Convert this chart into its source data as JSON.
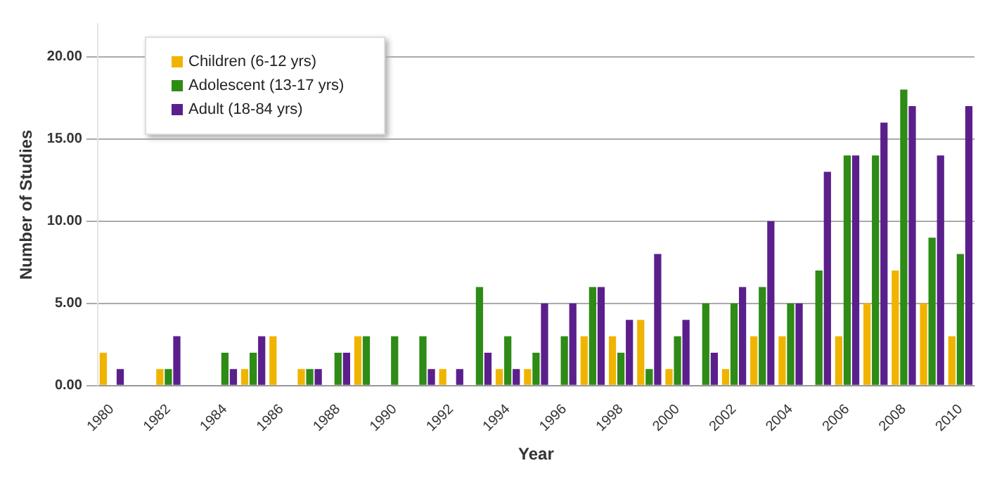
{
  "chart_data": {
    "type": "bar",
    "xlabel": "Year",
    "ylabel": "Number of Studies",
    "categories": [
      "1980",
      null,
      "1982",
      null,
      "1984",
      null,
      "1986",
      null,
      "1988",
      null,
      "1990",
      null,
      "1992",
      null,
      "1994",
      null,
      "1996",
      null,
      "1998",
      null,
      "2000",
      null,
      "2002",
      null,
      "2004",
      null,
      "2006",
      null,
      "2008",
      null,
      "2010"
    ],
    "series": [
      {
        "name": "Children (6-12 yrs)",
        "color": "#f0b400",
        "values": [
          2,
          null,
          1,
          null,
          null,
          1,
          3,
          1,
          null,
          3,
          null,
          null,
          1,
          null,
          1,
          1,
          null,
          3,
          3,
          4,
          1,
          null,
          1,
          3,
          3,
          null,
          3,
          5,
          7,
          5,
          3
        ]
      },
      {
        "name": "Adolescent (13-17 yrs)",
        "color": "#2e8b16",
        "values": [
          null,
          null,
          1,
          null,
          2,
          2,
          null,
          1,
          2,
          3,
          3,
          3,
          null,
          6,
          3,
          2,
          3,
          6,
          2,
          1,
          3,
          5,
          5,
          6,
          5,
          7,
          14,
          14,
          18,
          9,
          8
        ]
      },
      {
        "name": "Adult (18-84 yrs)",
        "color": "#5b1f8c",
        "values": [
          1,
          null,
          3,
          null,
          1,
          3,
          null,
          1,
          2,
          null,
          null,
          1,
          1,
          2,
          1,
          5,
          5,
          6,
          4,
          8,
          4,
          2,
          6,
          10,
          5,
          13,
          14,
          16,
          17,
          14,
          17
        ]
      }
    ],
    "ylim": [
      0,
      22
    ],
    "yticks": [
      {
        "value": 0,
        "label": "0.00"
      },
      {
        "value": 5,
        "label": "5.00"
      },
      {
        "value": 10,
        "label": "10.00"
      },
      {
        "value": 15,
        "label": "15.00"
      },
      {
        "value": 20,
        "label": "20.00"
      }
    ],
    "grid": "y",
    "legend": "top left"
  }
}
